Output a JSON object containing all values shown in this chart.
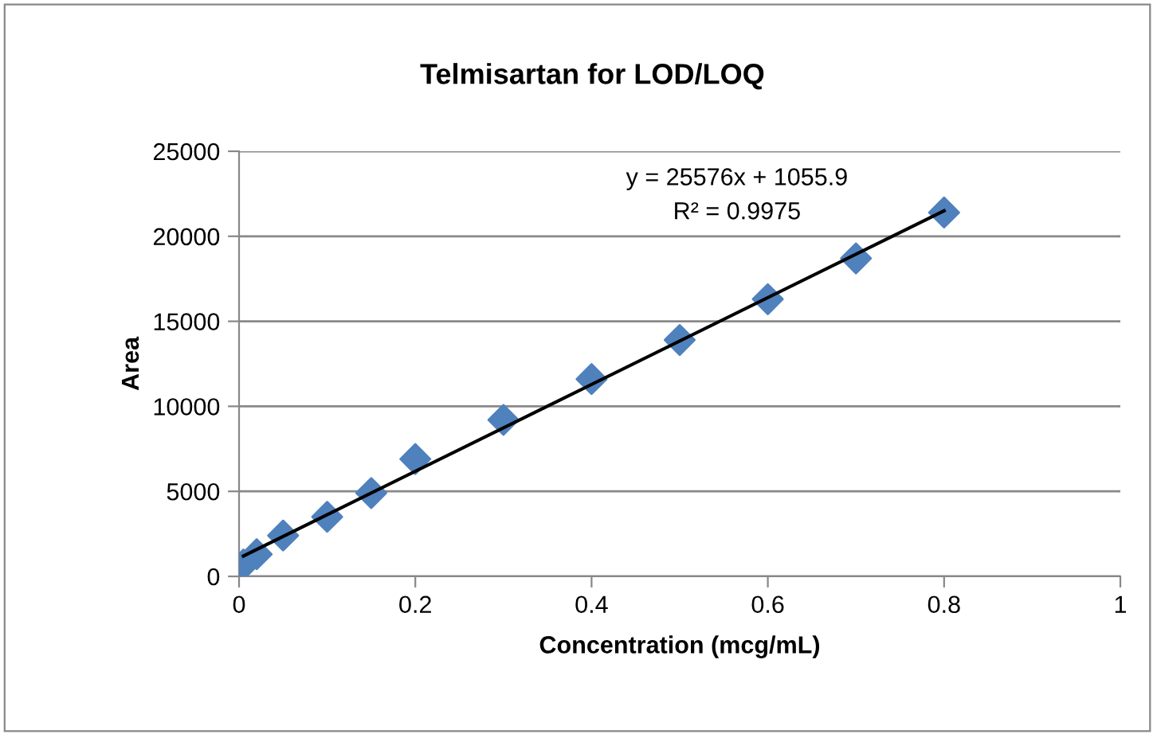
{
  "chart_data": {
    "type": "scatter",
    "title": "Telmisartan for LOD/LOQ",
    "xlabel": "Concentration (mcg/mL)",
    "ylabel": "Area",
    "series": [
      {
        "color": "#4f81bd",
        "marker": "diamond",
        "x": [
          0.005,
          0.02,
          0.05,
          0.1,
          0.15,
          0.2,
          0.3,
          0.4,
          0.5,
          0.6,
          0.7,
          0.8
        ],
        "values": [
          700,
          1300,
          2400,
          3500,
          4900,
          6900,
          9200,
          11600,
          13900,
          16300,
          18700,
          21400
        ]
      },
      {
        "type": "line",
        "color": "#000000",
        "x": [
          0.005,
          0.8
        ],
        "values": [
          1200,
          21500
        ]
      }
    ],
    "annotations": [
      "y = 25576x + 1055.9",
      "R² = 0.9975"
    ],
    "xlim": [
      0,
      1
    ],
    "ylim": [
      0,
      25000
    ],
    "xticks": [
      0,
      0.2,
      0.4,
      0.6,
      0.8,
      1
    ],
    "yticks": [
      0,
      5000,
      10000,
      15000,
      20000,
      25000
    ],
    "grid": "y",
    "legend": false
  }
}
